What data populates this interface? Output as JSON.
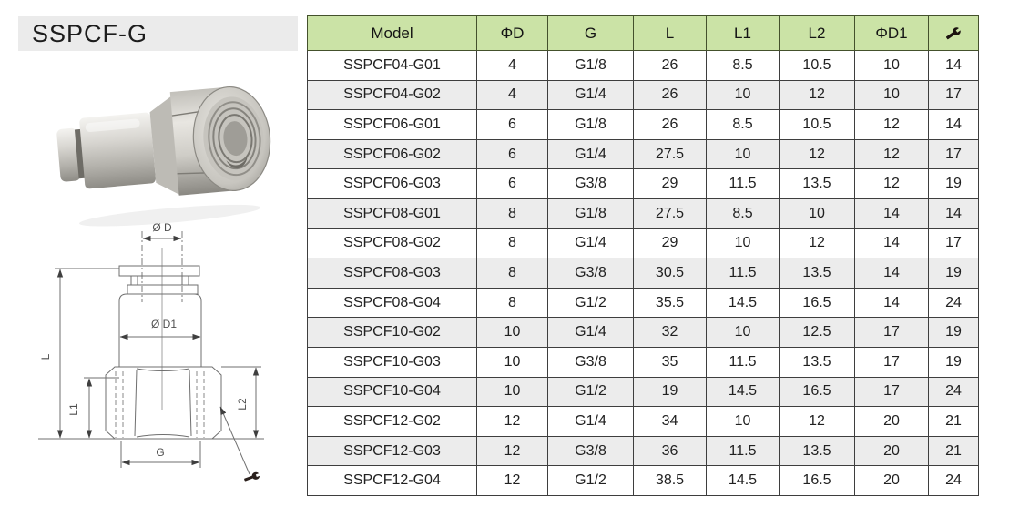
{
  "page": {
    "title": "SSPCF-G"
  },
  "table": {
    "headers": [
      "Model",
      "ΦD",
      "G",
      "L",
      "L1",
      "L2",
      "ΦD1"
    ],
    "header_icon": "wrench-icon",
    "rows": [
      [
        "SSPCF04-G01",
        "4",
        "G1/8",
        "26",
        "8.5",
        "10.5",
        "10",
        "14"
      ],
      [
        "SSPCF04-G02",
        "4",
        "G1/4",
        "26",
        "10",
        "12",
        "10",
        "17"
      ],
      [
        "SSPCF06-G01",
        "6",
        "G1/8",
        "26",
        "8.5",
        "10.5",
        "12",
        "14"
      ],
      [
        "SSPCF06-G02",
        "6",
        "G1/4",
        "27.5",
        "10",
        "12",
        "12",
        "17"
      ],
      [
        "SSPCF06-G03",
        "6",
        "G3/8",
        "29",
        "11.5",
        "13.5",
        "12",
        "19"
      ],
      [
        "SSPCF08-G01",
        "8",
        "G1/8",
        "27.5",
        "8.5",
        "10",
        "14",
        "14"
      ],
      [
        "SSPCF08-G02",
        "8",
        "G1/4",
        "29",
        "10",
        "12",
        "14",
        "17"
      ],
      [
        "SSPCF08-G03",
        "8",
        "G3/8",
        "30.5",
        "11.5",
        "13.5",
        "14",
        "19"
      ],
      [
        "SSPCF08-G04",
        "8",
        "G1/2",
        "35.5",
        "14.5",
        "16.5",
        "14",
        "24"
      ],
      [
        "SSPCF10-G02",
        "10",
        "G1/4",
        "32",
        "10",
        "12.5",
        "17",
        "19"
      ],
      [
        "SSPCF10-G03",
        "10",
        "G3/8",
        "35",
        "11.5",
        "13.5",
        "17",
        "19"
      ],
      [
        "SSPCF10-G04",
        "10",
        "G1/2",
        "19",
        "14.5",
        "16.5",
        "17",
        "24"
      ],
      [
        "SSPCF12-G02",
        "12",
        "G1/4",
        "34",
        "10",
        "12",
        "20",
        "21"
      ],
      [
        "SSPCF12-G03",
        "12",
        "G3/8",
        "36",
        "11.5",
        "13.5",
        "20",
        "21"
      ],
      [
        "SSPCF12-G04",
        "12",
        "G1/2",
        "38.5",
        "14.5",
        "16.5",
        "20",
        "24"
      ]
    ]
  },
  "drawing": {
    "labels": {
      "d": "Ø D",
      "d1": "Ø D1",
      "l": "L",
      "l1": "L1",
      "l2": "L2",
      "g": "G"
    }
  },
  "colors": {
    "header_bg": "#cbe3a6",
    "row_alt_bg": "#ececec",
    "grid_border": "#3e3e3e",
    "title_bg": "#ebebeb",
    "drawing_line": "#6f6f6f"
  }
}
